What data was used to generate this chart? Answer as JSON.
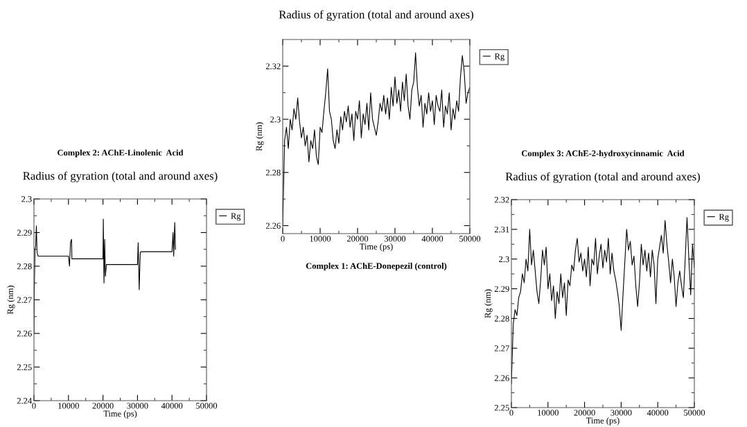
{
  "chart_data": [
    {
      "type": "line",
      "title": "Radius of gyration (total and around axes)",
      "xlabel": "Time (ps)",
      "ylabel": "Rg (nm)",
      "annotations": [
        "Complex 1: AChE-Donepezil (control)"
      ],
      "xlim": [
        0,
        50000
      ],
      "xticks": [
        0,
        10000,
        20000,
        30000,
        40000,
        50000
      ],
      "ylim": [
        2.257,
        2.33
      ],
      "yticks": [
        2.26,
        2.28,
        2.3,
        2.32
      ],
      "legend": "top right",
      "grid": false,
      "series": [
        {
          "name": "Rg",
          "color": "#000000",
          "x": [
            0,
            500,
            1000,
            1500,
            2000,
            2500,
            3000,
            3500,
            4000,
            4500,
            5000,
            5500,
            6000,
            6500,
            7000,
            7500,
            8000,
            8500,
            9000,
            9500,
            10000,
            10500,
            11000,
            11500,
            12000,
            12500,
            13000,
            13500,
            14000,
            14500,
            15000,
            15500,
            16000,
            16500,
            17000,
            17500,
            18000,
            18500,
            19000,
            19500,
            20000,
            20500,
            21000,
            21500,
            22000,
            22500,
            23000,
            23500,
            24000,
            24500,
            25000,
            25500,
            26000,
            26500,
            27000,
            27500,
            28000,
            28500,
            29000,
            29500,
            30000,
            30500,
            31000,
            31500,
            32000,
            32500,
            33000,
            33500,
            34000,
            34500,
            35000,
            35500,
            36000,
            36500,
            37000,
            37500,
            38000,
            38500,
            39000,
            39500,
            40000,
            40500,
            41000,
            41500,
            42000,
            42500,
            43000,
            43500,
            44000,
            44500,
            45000,
            45500,
            46000,
            46500,
            47000,
            47500,
            48000,
            48500,
            49000,
            49500,
            50000
          ],
          "values": [
            2.26,
            2.292,
            2.297,
            2.289,
            2.3,
            2.296,
            2.304,
            2.3,
            2.308,
            2.299,
            2.293,
            2.297,
            2.29,
            2.294,
            2.284,
            2.292,
            2.289,
            2.296,
            2.286,
            2.283,
            2.297,
            2.295,
            2.303,
            2.31,
            2.319,
            2.303,
            2.3,
            2.292,
            2.289,
            2.296,
            2.291,
            2.301,
            2.296,
            2.303,
            2.299,
            2.305,
            2.297,
            2.302,
            2.292,
            2.303,
            2.3,
            2.307,
            2.293,
            2.302,
            2.298,
            2.306,
            2.296,
            2.31,
            2.3,
            2.297,
            2.294,
            2.299,
            2.306,
            2.303,
            2.309,
            2.302,
            2.308,
            2.3,
            2.312,
            2.305,
            2.316,
            2.306,
            2.311,
            2.303,
            2.314,
            2.307,
            2.317,
            2.305,
            2.3,
            2.311,
            2.314,
            2.325,
            2.312,
            2.305,
            2.309,
            2.297,
            2.306,
            2.302,
            2.31,
            2.303,
            2.307,
            2.298,
            2.309,
            2.305,
            2.303,
            2.311,
            2.297,
            2.305,
            2.302,
            2.31,
            2.296,
            2.304,
            2.3,
            2.307,
            2.303,
            2.316,
            2.324,
            2.318,
            2.306,
            2.31,
            2.312
          ]
        }
      ]
    },
    {
      "type": "line",
      "title": "Radius of gyration (total and around axes)",
      "xlabel": "Time (ps)",
      "ylabel": "Rg (nm)",
      "annotations": [
        "Complex 2: AChE-Linolenic  Acid"
      ],
      "xlim": [
        0,
        50000
      ],
      "xticks": [
        0,
        10000,
        20000,
        30000,
        40000,
        50000
      ],
      "ylim": [
        2.24,
        2.3
      ],
      "yticks": [
        2.24,
        2.25,
        2.26,
        2.27,
        2.28,
        2.29,
        2.3
      ],
      "legend": "top right",
      "grid": false,
      "series": [
        {
          "name": "Rg",
          "color": "#000000",
          "x": [
            0,
            100,
            300,
            500,
            700,
            900,
            1200,
            10000,
            10300,
            10600,
            10900,
            11000,
            20000,
            20100,
            20300,
            20500,
            20700,
            21000,
            30000,
            30200,
            30500,
            30800,
            31000,
            40000,
            40300,
            40500,
            40800,
            41000
          ],
          "values": [
            2.26,
            2.273,
            2.285,
            2.286,
            2.292,
            2.284,
            2.283,
            2.283,
            2.28,
            2.287,
            2.288,
            2.2822,
            2.2822,
            2.294,
            2.275,
            2.288,
            2.277,
            2.2805,
            2.2805,
            2.287,
            2.273,
            2.284,
            2.2843,
            2.2843,
            2.29,
            2.283,
            2.293,
            2.285
          ]
        }
      ]
    },
    {
      "type": "line",
      "title": "Radius of gyration (total and around axes)",
      "xlabel": "Time (ps)",
      "ylabel": "Rg (nm)",
      "annotations": [
        "Complex 3: AChE-2-hydroxycinnamic  Acid"
      ],
      "xlim": [
        0,
        50000
      ],
      "xticks": [
        0,
        10000,
        20000,
        30000,
        40000,
        50000
      ],
      "ylim": [
        2.25,
        2.32
      ],
      "yticks": [
        2.25,
        2.26,
        2.27,
        2.28,
        2.29,
        2.3,
        2.31,
        2.32
      ],
      "legend": "top right",
      "grid": false,
      "series": [
        {
          "name": "Rg",
          "color": "#000000",
          "x": [
            0,
            500,
            1000,
            1500,
            2000,
            2500,
            3000,
            3500,
            4000,
            4500,
            5000,
            5500,
            6000,
            6500,
            7000,
            7500,
            8000,
            8500,
            9000,
            9500,
            10000,
            10500,
            11000,
            11500,
            12000,
            12500,
            13000,
            13500,
            14000,
            14500,
            15000,
            15500,
            16000,
            16500,
            17000,
            17500,
            18000,
            18500,
            19000,
            19500,
            20000,
            20500,
            21000,
            21500,
            22000,
            22500,
            23000,
            23500,
            24000,
            24500,
            25000,
            25500,
            26000,
            26500,
            27000,
            27500,
            28000,
            28500,
            29000,
            29500,
            30000,
            30500,
            31000,
            31500,
            32000,
            32500,
            33000,
            33500,
            34000,
            34500,
            35000,
            35500,
            36000,
            36500,
            37000,
            37500,
            38000,
            38500,
            39000,
            39500,
            40000,
            40500,
            41000,
            41500,
            42000,
            42500,
            43000,
            43500,
            44000,
            44500,
            45000,
            45500,
            46000,
            46500,
            47000,
            47500,
            48000,
            48500,
            49000,
            49500,
            50000
          ],
          "values": [
            2.258,
            2.278,
            2.283,
            2.281,
            2.287,
            2.289,
            2.295,
            2.292,
            2.3,
            2.296,
            2.31,
            2.298,
            2.303,
            2.296,
            2.289,
            2.285,
            2.293,
            2.303,
            2.298,
            2.304,
            2.29,
            2.295,
            2.286,
            2.291,
            2.28,
            2.289,
            2.285,
            2.295,
            2.287,
            2.292,
            2.281,
            2.293,
            2.291,
            2.298,
            2.296,
            2.303,
            2.307,
            2.299,
            2.302,
            2.296,
            2.3,
            2.294,
            2.304,
            2.291,
            2.3,
            2.298,
            2.307,
            2.295,
            2.301,
            2.305,
            2.297,
            2.303,
            2.299,
            2.307,
            2.295,
            2.302,
            2.296,
            2.293,
            2.289,
            2.284,
            2.276,
            2.288,
            2.299,
            2.31,
            2.303,
            2.306,
            2.298,
            2.301,
            2.291,
            2.284,
            2.292,
            2.305,
            2.298,
            2.303,
            2.296,
            2.302,
            2.294,
            2.303,
            2.298,
            2.285,
            2.3,
            2.304,
            2.308,
            2.302,
            2.313,
            2.305,
            2.299,
            2.292,
            2.3,
            2.294,
            2.284,
            2.292,
            2.296,
            2.291,
            2.287,
            2.3,
            2.314,
            2.3,
            2.288,
            2.305,
            2.297
          ]
        }
      ]
    }
  ]
}
